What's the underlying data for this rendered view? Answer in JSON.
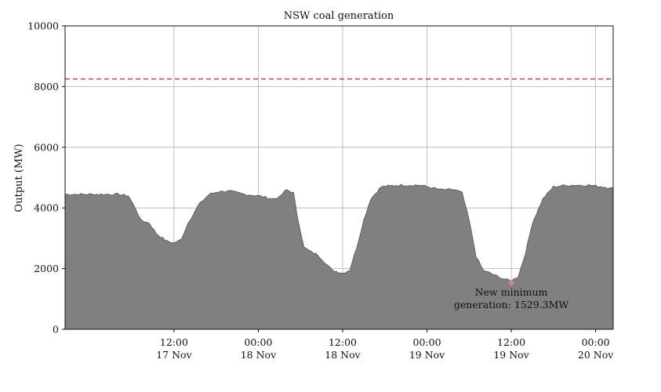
{
  "chart_data": {
    "type": "area",
    "title": "NSW coal generation",
    "xlabel": "",
    "ylabel": "Output (MW)",
    "ylim": [
      0,
      10000
    ],
    "yticks": [
      0,
      2000,
      4000,
      6000,
      8000,
      10000
    ],
    "xlim": [
      "2023-11-16 20:30",
      "2023-11-20 02:30"
    ],
    "xticks": [
      {
        "t": "2023-11-17 12:00",
        "line1": "12:00",
        "line2": "17 Nov"
      },
      {
        "t": "2023-11-18 00:00",
        "line1": "00:00",
        "line2": "18 Nov"
      },
      {
        "t": "2023-11-18 12:00",
        "line1": "12:00",
        "line2": "18 Nov"
      },
      {
        "t": "2023-11-19 00:00",
        "line1": "00:00",
        "line2": "19 Nov"
      },
      {
        "t": "2023-11-19 12:00",
        "line1": "12:00",
        "line2": "19 Nov"
      },
      {
        "t": "2023-11-20 00:00",
        "line1": "00:00",
        "line2": "20 Nov"
      }
    ],
    "grid": true,
    "fill_color": "#808080",
    "edge_color": "#555555",
    "series": [
      {
        "x": [
          "2023-11-16 20:30",
          "2023-11-17 00:00",
          "2023-11-17 04:00",
          "2023-11-17 05:30",
          "2023-11-17 06:30",
          "2023-11-17 07:15",
          "2023-11-17 08:30",
          "2023-11-17 09:30",
          "2023-11-17 11:00",
          "2023-11-17 12:00",
          "2023-11-17 13:00",
          "2023-11-17 14:00",
          "2023-11-17 15:30",
          "2023-11-17 17:00",
          "2023-11-17 18:30",
          "2023-11-17 20:00",
          "2023-11-17 22:00",
          "2023-11-18 00:00",
          "2023-11-18 02:00",
          "2023-11-18 03:00",
          "2023-11-18 04:00",
          "2023-11-18 05:00",
          "2023-11-18 05:30",
          "2023-11-18 06:30",
          "2023-11-18 07:30",
          "2023-11-18 08:30",
          "2023-11-18 09:30",
          "2023-11-18 10:30",
          "2023-11-18 12:00",
          "2023-11-18 13:00",
          "2023-11-18 14:00",
          "2023-11-18 15:00",
          "2023-11-18 16:00",
          "2023-11-18 17:30",
          "2023-11-18 20:00",
          "2023-11-18 23:00",
          "2023-11-19 02:00",
          "2023-11-19 04:00",
          "2023-11-19 05:00",
          "2023-11-19 06:00",
          "2023-11-19 07:00",
          "2023-11-19 08:00",
          "2023-11-19 09:30",
          "2023-11-19 11:00",
          "2023-11-19 12:00",
          "2023-11-19 13:00",
          "2023-11-19 14:00",
          "2023-11-19 15:00",
          "2023-11-19 16:30",
          "2023-11-19 18:00",
          "2023-11-19 20:00",
          "2023-11-19 23:00",
          "2023-11-20 01:00",
          "2023-11-20 02:30"
        ],
        "y": [
          4450,
          4450,
          4450,
          4400,
          4000,
          3600,
          3500,
          3150,
          2900,
          2850,
          2950,
          3500,
          4100,
          4450,
          4550,
          4550,
          4450,
          4400,
          4300,
          4350,
          4600,
          4500,
          3800,
          2700,
          2550,
          2450,
          2200,
          1950,
          1850,
          1950,
          2700,
          3600,
          4300,
          4700,
          4750,
          4750,
          4600,
          4600,
          4500,
          3600,
          2400,
          1950,
          1800,
          1650,
          1600,
          1750,
          2500,
          3500,
          4300,
          4700,
          4750,
          4750,
          4700,
          4650
        ]
      }
    ],
    "reference_line": {
      "y": 8250,
      "color": "#c0504d",
      "style": "dashed"
    },
    "annotation": {
      "point": {
        "x": "2023-11-19 12:00",
        "y": 1529.3
      },
      "marker_color": "#d98080",
      "line1": "New minimum",
      "line2": "generation: 1529.3MW"
    }
  }
}
